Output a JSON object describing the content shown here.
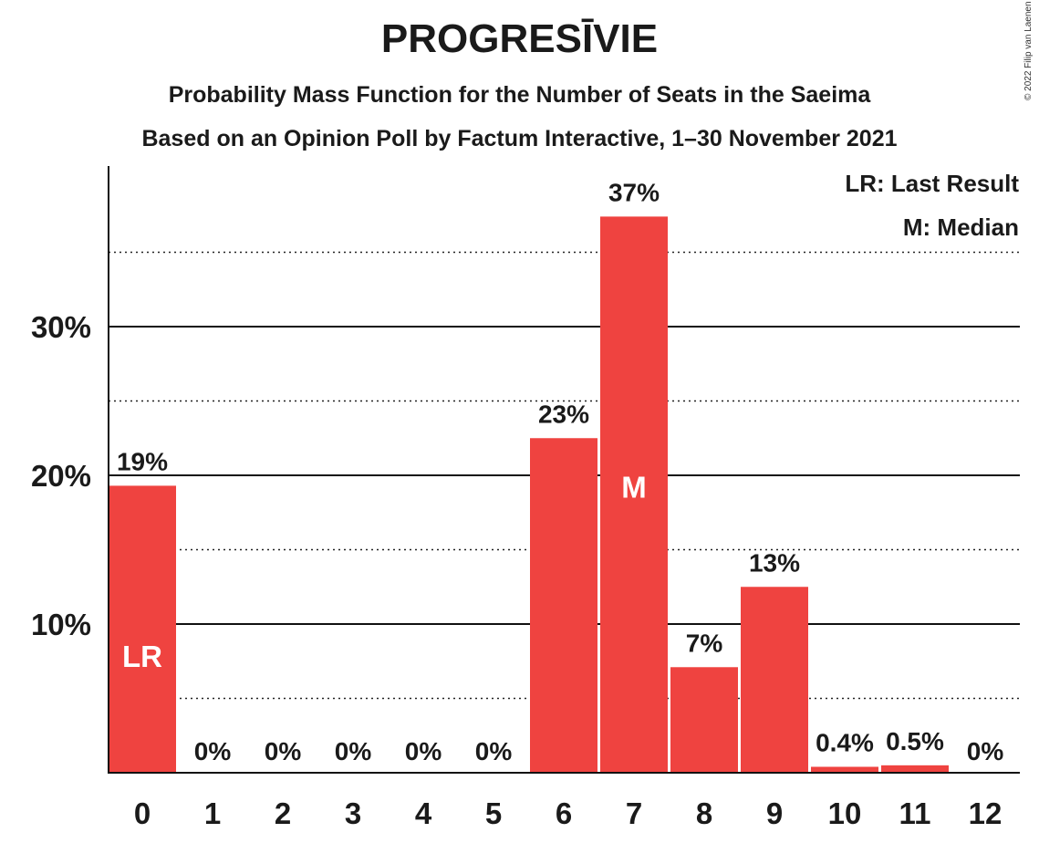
{
  "chart_data": {
    "type": "bar",
    "title": "PROGRESĪVIE",
    "subtitle": [
      "Probability Mass Function for the Number of Seats in the Saeima",
      "Based on an Opinion Poll by Factum Interactive, 1–30 November 2021"
    ],
    "categories": [
      "0",
      "1",
      "2",
      "3",
      "4",
      "5",
      "6",
      "7",
      "8",
      "9",
      "10",
      "11",
      "12"
    ],
    "values": [
      19.3,
      0,
      0,
      0,
      0,
      0,
      22.5,
      37.4,
      7.1,
      12.5,
      0.4,
      0.5,
      0
    ],
    "value_labels": [
      "19%",
      "0%",
      "0%",
      "0%",
      "0%",
      "0%",
      "23%",
      "37%",
      "7%",
      "13%",
      "0.4%",
      "0.5%",
      "0%"
    ],
    "bar_markers": [
      {
        "index": 0,
        "text": "LR"
      },
      {
        "index": 7,
        "text": "M"
      }
    ],
    "legend": [
      "LR: Last Result",
      "M: Median"
    ],
    "legend_position": "top-right",
    "y_ticks": [
      10,
      20,
      30
    ],
    "y_tick_labels": [
      "10%",
      "20%",
      "30%"
    ],
    "y_minor_ticks": [
      5,
      15,
      25,
      35
    ],
    "ylim": [
      0,
      40
    ],
    "grid": true,
    "bar_color": "#ef4340",
    "copyright": "© 2022 Filip van Laenen"
  }
}
